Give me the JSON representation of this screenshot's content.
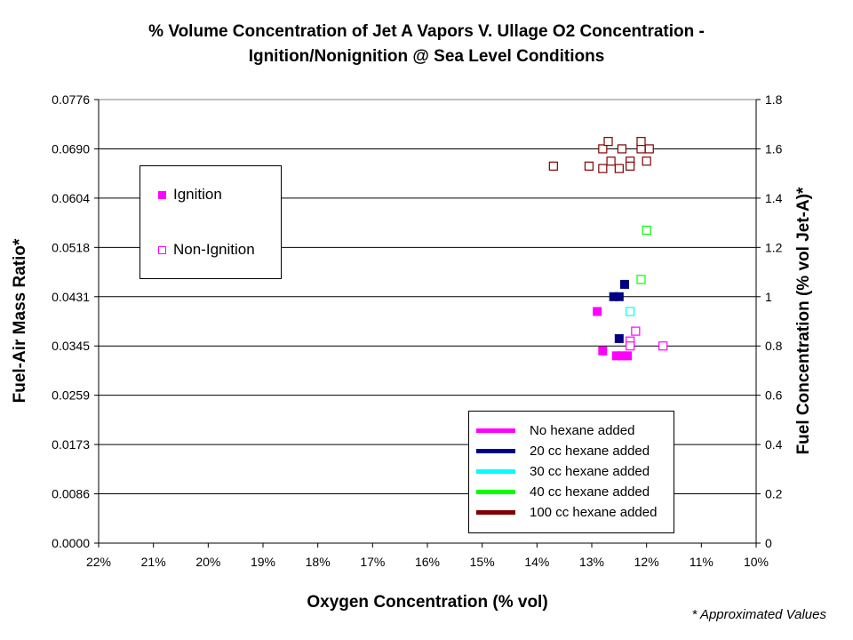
{
  "header": {
    "title_line1": "% Volume Concentration of Jet A Vapors V. Ullage O2 Concentration -",
    "title_line2": "Ignition/Nonignition @ Sea Level Conditions"
  },
  "footnote": "* Approximated Values",
  "marker_legend": {
    "ignition": "Ignition",
    "non_ignition": "Non-Ignition"
  },
  "series_legend": [
    {
      "label": "No hexane added",
      "color": "#ff00ff"
    },
    {
      "label": "20 cc hexane added",
      "color": "#000080"
    },
    {
      "label": "30 cc hexane added",
      "color": "#00ffff"
    },
    {
      "label": "40 cc hexane added",
      "color": "#00ff00"
    },
    {
      "label": "100 cc hexane added",
      "color": "#800000"
    }
  ],
  "chart_data": {
    "type": "scatter",
    "title": "% Volume Concentration of Jet A Vapors V. Ullage O2 Concentration - Ignition/Nonignition @ Sea Level Conditions",
    "xlabel": "Oxygen Concentration (% vol)",
    "ylabel": "Fuel-Air Mass Ratio*",
    "y2label": "Fuel Concentration (% vol Jet-A)*",
    "xlim": [
      22,
      10
    ],
    "x_reversed": true,
    "ylim": [
      0,
      1.8
    ],
    "grid": true,
    "x_ticks": [
      "22%",
      "21%",
      "20%",
      "19%",
      "18%",
      "17%",
      "16%",
      "15%",
      "14%",
      "13%",
      "12%",
      "11%",
      "10%"
    ],
    "y_left_ticks": [
      "0.0000",
      "0.0086",
      "0.0173",
      "0.0259",
      "0.0345",
      "0.0431",
      "0.0518",
      "0.0604",
      "0.0690",
      "0.0776"
    ],
    "y_right_ticks": [
      "0",
      "0.2",
      "0.4",
      "0.6",
      "0.8",
      "1",
      "1.2",
      "1.4",
      "1.6",
      "1.8"
    ],
    "series": [
      {
        "name": "No hexane added",
        "color": "#ff00ff",
        "points": [
          {
            "x": 12.9,
            "y": 0.94,
            "ignition": true
          },
          {
            "x": 12.8,
            "y": 0.78,
            "ignition": true
          },
          {
            "x": 12.55,
            "y": 0.76,
            "ignition": true
          },
          {
            "x": 12.45,
            "y": 0.76,
            "ignition": true
          },
          {
            "x": 12.35,
            "y": 0.76,
            "ignition": true
          },
          {
            "x": 12.2,
            "y": 0.86,
            "ignition": false
          },
          {
            "x": 12.3,
            "y": 0.82,
            "ignition": false
          },
          {
            "x": 12.3,
            "y": 0.8,
            "ignition": false
          },
          {
            "x": 11.7,
            "y": 0.8,
            "ignition": false
          }
        ]
      },
      {
        "name": "20 cc hexane added",
        "color": "#000080",
        "points": [
          {
            "x": 12.6,
            "y": 1.0,
            "ignition": true
          },
          {
            "x": 12.5,
            "y": 1.0,
            "ignition": true
          },
          {
            "x": 12.4,
            "y": 1.05,
            "ignition": true
          },
          {
            "x": 12.5,
            "y": 0.83,
            "ignition": true
          }
        ]
      },
      {
        "name": "30 cc hexane added",
        "color": "#00ffff",
        "points": [
          {
            "x": 12.3,
            "y": 0.94,
            "ignition": false
          }
        ]
      },
      {
        "name": "40 cc hexane added",
        "color": "#00ff00",
        "points": [
          {
            "x": 12.1,
            "y": 1.07,
            "ignition": false
          },
          {
            "x": 12.0,
            "y": 1.27,
            "ignition": false
          }
        ]
      },
      {
        "name": "100 cc hexane added",
        "color": "#800000",
        "points": [
          {
            "x": 13.7,
            "y": 1.53,
            "ignition": false
          },
          {
            "x": 13.05,
            "y": 1.53,
            "ignition": false
          },
          {
            "x": 12.8,
            "y": 1.52,
            "ignition": false
          },
          {
            "x": 12.8,
            "y": 1.6,
            "ignition": false
          },
          {
            "x": 12.7,
            "y": 1.63,
            "ignition": false
          },
          {
            "x": 12.65,
            "y": 1.55,
            "ignition": false
          },
          {
            "x": 12.5,
            "y": 1.52,
            "ignition": false
          },
          {
            "x": 12.45,
            "y": 1.6,
            "ignition": false
          },
          {
            "x": 12.3,
            "y": 1.55,
            "ignition": false
          },
          {
            "x": 12.3,
            "y": 1.53,
            "ignition": false
          },
          {
            "x": 12.1,
            "y": 1.6,
            "ignition": false
          },
          {
            "x": 12.1,
            "y": 1.63,
            "ignition": false
          },
          {
            "x": 12.0,
            "y": 1.55,
            "ignition": false
          },
          {
            "x": 11.95,
            "y": 1.6,
            "ignition": false
          }
        ]
      }
    ]
  }
}
